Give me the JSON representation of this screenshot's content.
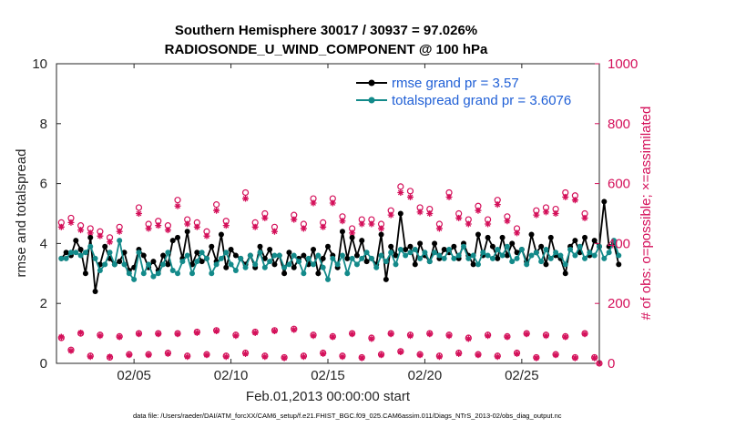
{
  "colors": {
    "rmse": "#000000",
    "spread": "#138a8a",
    "obs": "#d4105a",
    "legend_text": "#1f5fd6"
  },
  "chart_data": {
    "type": "line",
    "title_line1": "Southern Hemisphere 30017 / 30937 = 97.026%",
    "title_line2": "RADIOSONDE_U_WIND_COMPONENT @ 100 hPa",
    "xlabel": "Feb.01,2013 00:00:00 start",
    "ylabel_left": "rmse and totalspread",
    "ylabel_right": "# of obs: o=possible; ×=assimilated",
    "xlim": [
      1,
      29
    ],
    "ylim_left": [
      0,
      10
    ],
    "ylim_right": [
      0,
      1000
    ],
    "x_ticks": [
      5,
      10,
      15,
      20,
      25
    ],
    "x_tick_labels": [
      "02/05",
      "02/10",
      "02/15",
      "02/20",
      "02/25"
    ],
    "y_left_ticks": [
      "0",
      "2",
      "4",
      "6",
      "8",
      "10"
    ],
    "y_right_ticks": [
      "0",
      "200",
      "400",
      "600",
      "800",
      "1000"
    ],
    "legend": {
      "rmse": "rmse grand pr = 3.57",
      "spread": "totalspread grand pr = 3.6076"
    },
    "x_start": 1.25,
    "x_step": 0.25,
    "series": [
      {
        "name": "rmse",
        "values": [
          3.5,
          3.7,
          3.6,
          4.1,
          3.8,
          3.0,
          4.2,
          2.4,
          3.3,
          3.9,
          3.5,
          3.3,
          3.4,
          3.7,
          3.1,
          3.2,
          3.8,
          3.6,
          3.2,
          3.4,
          3.1,
          3.6,
          3.3,
          4.1,
          4.2,
          3.5,
          4.4,
          3.3,
          3.7,
          3.4,
          3.5,
          3.9,
          3.4,
          4.3,
          3.2,
          3.8,
          3.6,
          3.5,
          3.3,
          3.6,
          3.2,
          3.9,
          3.5,
          3.8,
          3.3,
          3.6,
          3.0,
          3.7,
          3.2,
          3.5,
          3.6,
          3.3,
          3.8,
          3.0,
          3.5,
          3.9,
          3.6,
          3.2,
          4.4,
          3.5,
          4.2,
          3.6,
          4.1,
          3.4,
          3.5,
          3.3,
          4.3,
          2.8,
          3.9,
          3.6,
          5.0,
          3.8,
          3.9,
          3.3,
          4.0,
          3.6,
          3.4,
          4.0,
          3.5,
          3.8,
          3.7,
          3.9,
          3.5,
          4.0,
          3.6,
          3.3,
          4.3,
          3.6,
          4.2,
          3.9,
          3.5,
          4.2,
          3.6,
          4.0,
          3.7,
          3.8,
          3.4,
          4.3,
          3.7,
          3.9,
          3.3,
          4.2,
          3.6,
          3.5,
          3.0,
          3.9,
          4.1,
          3.7,
          4.2,
          3.6,
          4.1,
          3.9,
          5.4,
          3.9,
          4.0,
          3.3
        ]
      },
      {
        "name": "totalspread",
        "values": [
          3.5,
          3.5,
          3.7,
          3.7,
          3.6,
          3.7,
          3.9,
          3.5,
          3.1,
          3.3,
          3.7,
          3.3,
          4.1,
          3.3,
          3.0,
          2.8,
          3.7,
          3.0,
          3.3,
          2.9,
          3.0,
          3.3,
          3.7,
          3.1,
          3.0,
          3.4,
          3.6,
          3.0,
          3.4,
          3.7,
          3.5,
          3.0,
          3.3,
          3.5,
          3.7,
          3.3,
          3.1,
          3.5,
          3.2,
          3.6,
          3.3,
          3.7,
          3.2,
          3.4,
          3.6,
          3.6,
          3.2,
          3.3,
          3.6,
          3.4,
          3.0,
          3.5,
          3.3,
          3.6,
          3.2,
          2.8,
          3.5,
          3.3,
          3.6,
          3.0,
          3.5,
          3.3,
          3.5,
          3.7,
          3.5,
          3.2,
          3.6,
          3.4,
          3.7,
          3.3,
          3.8,
          3.6,
          3.7,
          3.8,
          3.5,
          3.7,
          3.4,
          3.7,
          3.6,
          3.5,
          3.8,
          3.5,
          3.6,
          3.9,
          3.5,
          3.6,
          3.3,
          3.7,
          3.6,
          3.5,
          3.8,
          3.6,
          3.9,
          3.4,
          3.5,
          3.8,
          3.3,
          3.6,
          3.7,
          3.4,
          3.8,
          3.5,
          3.7,
          3.6,
          3.3,
          3.8,
          3.6,
          3.9,
          3.5,
          3.7,
          3.6,
          3.9,
          3.5,
          3.7,
          4.1,
          3.6
        ]
      }
    ],
    "obs_possible": [
      [
        1.25,
        470
      ],
      [
        1.75,
        485
      ],
      [
        2.25,
        460
      ],
      [
        2.75,
        450
      ],
      [
        3.25,
        440
      ],
      [
        3.75,
        420
      ],
      [
        4.25,
        455
      ],
      [
        5.25,
        520
      ],
      [
        5.75,
        465
      ],
      [
        6.25,
        475
      ],
      [
        6.75,
        460
      ],
      [
        7.25,
        545
      ],
      [
        7.75,
        480
      ],
      [
        8.25,
        470
      ],
      [
        8.75,
        440
      ],
      [
        9.25,
        530
      ],
      [
        9.75,
        475
      ],
      [
        10.75,
        570
      ],
      [
        11.25,
        470
      ],
      [
        11.75,
        500
      ],
      [
        12.25,
        455
      ],
      [
        13.25,
        495
      ],
      [
        13.75,
        465
      ],
      [
        14.25,
        550
      ],
      [
        14.75,
        470
      ],
      [
        15.25,
        550
      ],
      [
        15.75,
        490
      ],
      [
        16.25,
        450
      ],
      [
        16.75,
        480
      ],
      [
        17.25,
        480
      ],
      [
        17.75,
        465
      ],
      [
        18.25,
        510
      ],
      [
        18.75,
        590
      ],
      [
        19.25,
        575
      ],
      [
        19.75,
        520
      ],
      [
        20.25,
        515
      ],
      [
        20.75,
        465
      ],
      [
        21.25,
        570
      ],
      [
        21.75,
        500
      ],
      [
        22.25,
        480
      ],
      [
        22.75,
        525
      ],
      [
        23.25,
        480
      ],
      [
        23.75,
        545
      ],
      [
        24.25,
        490
      ],
      [
        24.75,
        450
      ],
      [
        25.75,
        510
      ],
      [
        26.25,
        520
      ],
      [
        26.75,
        515
      ],
      [
        27.25,
        570
      ],
      [
        27.75,
        560
      ],
      [
        28.25,
        500
      ],
      [
        1.25,
        85
      ],
      [
        1.75,
        45
      ],
      [
        2.25,
        100
      ],
      [
        2.75,
        25
      ],
      [
        3.25,
        95
      ],
      [
        3.75,
        20
      ],
      [
        4.25,
        90
      ],
      [
        4.75,
        30
      ],
      [
        5.25,
        100
      ],
      [
        5.75,
        30
      ],
      [
        6.25,
        100
      ],
      [
        6.75,
        35
      ],
      [
        7.25,
        100
      ],
      [
        7.75,
        25
      ],
      [
        8.25,
        105
      ],
      [
        8.75,
        30
      ],
      [
        9.25,
        110
      ],
      [
        9.75,
        25
      ],
      [
        10.25,
        95
      ],
      [
        10.75,
        35
      ],
      [
        11.25,
        105
      ],
      [
        11.75,
        25
      ],
      [
        12.25,
        110
      ],
      [
        12.75,
        20
      ],
      [
        13.25,
        115
      ],
      [
        13.75,
        25
      ],
      [
        14.25,
        95
      ],
      [
        14.75,
        35
      ],
      [
        15.25,
        90
      ],
      [
        15.75,
        25
      ],
      [
        16.25,
        100
      ],
      [
        16.75,
        20
      ],
      [
        17.25,
        85
      ],
      [
        17.75,
        30
      ],
      [
        18.25,
        100
      ],
      [
        18.75,
        40
      ],
      [
        19.25,
        95
      ],
      [
        19.75,
        30
      ],
      [
        20.25,
        100
      ],
      [
        20.75,
        25
      ],
      [
        21.25,
        95
      ],
      [
        21.75,
        35
      ],
      [
        22.25,
        85
      ],
      [
        22.75,
        30
      ],
      [
        23.25,
        95
      ],
      [
        23.75,
        25
      ],
      [
        24.25,
        90
      ],
      [
        24.75,
        35
      ],
      [
        25.25,
        100
      ],
      [
        25.75,
        20
      ],
      [
        26.25,
        95
      ],
      [
        26.75,
        30
      ],
      [
        27.25,
        90
      ],
      [
        27.75,
        20
      ],
      [
        28.25,
        100
      ],
      [
        28.75,
        20
      ],
      [
        29,
        0
      ]
    ],
    "obs_assimilated": [
      [
        1.25,
        455
      ],
      [
        1.75,
        470
      ],
      [
        2.25,
        445
      ],
      [
        2.75,
        435
      ],
      [
        3.25,
        425
      ],
      [
        3.75,
        405
      ],
      [
        4.25,
        440
      ],
      [
        5.25,
        500
      ],
      [
        5.75,
        450
      ],
      [
        6.25,
        460
      ],
      [
        6.75,
        445
      ],
      [
        7.25,
        525
      ],
      [
        7.75,
        465
      ],
      [
        8.25,
        455
      ],
      [
        8.75,
        425
      ],
      [
        9.25,
        510
      ],
      [
        9.75,
        460
      ],
      [
        10.75,
        550
      ],
      [
        11.25,
        455
      ],
      [
        11.75,
        485
      ],
      [
        12.25,
        440
      ],
      [
        13.25,
        480
      ],
      [
        13.75,
        450
      ],
      [
        14.25,
        535
      ],
      [
        14.75,
        455
      ],
      [
        15.25,
        535
      ],
      [
        15.75,
        475
      ],
      [
        16.25,
        435
      ],
      [
        16.75,
        465
      ],
      [
        17.25,
        465
      ],
      [
        17.75,
        450
      ],
      [
        18.25,
        495
      ],
      [
        18.75,
        570
      ],
      [
        19.25,
        555
      ],
      [
        19.75,
        505
      ],
      [
        20.25,
        500
      ],
      [
        20.75,
        450
      ],
      [
        21.25,
        555
      ],
      [
        21.75,
        485
      ],
      [
        22.25,
        465
      ],
      [
        22.75,
        510
      ],
      [
        23.25,
        465
      ],
      [
        23.75,
        530
      ],
      [
        24.25,
        475
      ],
      [
        24.75,
        435
      ],
      [
        25.75,
        495
      ],
      [
        26.25,
        505
      ],
      [
        26.75,
        500
      ],
      [
        27.25,
        555
      ],
      [
        27.75,
        545
      ],
      [
        28.25,
        485
      ],
      [
        1.25,
        88
      ],
      [
        1.75,
        42
      ],
      [
        2.25,
        102
      ],
      [
        2.75,
        22
      ],
      [
        3.25,
        92
      ],
      [
        3.75,
        22
      ],
      [
        4.25,
        88
      ],
      [
        4.75,
        28
      ],
      [
        5.25,
        98
      ],
      [
        5.75,
        28
      ],
      [
        6.25,
        98
      ],
      [
        6.75,
        32
      ],
      [
        7.25,
        98
      ],
      [
        7.75,
        22
      ],
      [
        8.25,
        102
      ],
      [
        8.75,
        28
      ],
      [
        9.25,
        108
      ],
      [
        9.75,
        22
      ],
      [
        10.25,
        92
      ],
      [
        10.75,
        32
      ],
      [
        11.25,
        102
      ],
      [
        11.75,
        22
      ],
      [
        12.25,
        108
      ],
      [
        12.75,
        18
      ],
      [
        13.25,
        112
      ],
      [
        13.75,
        22
      ],
      [
        14.25,
        92
      ],
      [
        14.75,
        32
      ],
      [
        15.25,
        88
      ],
      [
        15.75,
        22
      ],
      [
        16.25,
        98
      ],
      [
        16.75,
        18
      ],
      [
        17.25,
        82
      ],
      [
        17.75,
        28
      ],
      [
        18.25,
        98
      ],
      [
        18.75,
        38
      ],
      [
        19.25,
        92
      ],
      [
        19.75,
        28
      ],
      [
        20.25,
        98
      ],
      [
        20.75,
        22
      ],
      [
        21.25,
        92
      ],
      [
        21.75,
        32
      ],
      [
        22.25,
        82
      ],
      [
        22.75,
        28
      ],
      [
        23.25,
        92
      ],
      [
        23.75,
        22
      ],
      [
        24.25,
        88
      ],
      [
        24.75,
        32
      ],
      [
        25.25,
        98
      ],
      [
        25.75,
        18
      ],
      [
        26.25,
        92
      ],
      [
        26.75,
        28
      ],
      [
        27.25,
        88
      ],
      [
        27.75,
        18
      ],
      [
        28.25,
        98
      ],
      [
        28.75,
        18
      ],
      [
        29,
        0
      ]
    ]
  },
  "footer": {
    "text": "data file: /Users/raeder/DAI/ATM_forcXX/CAM6_setup/f.e21.FHIST_BGC.f09_025.CAM6assim.011/Diags_NTrS_2013-02/obs_diag_output.nc"
  }
}
